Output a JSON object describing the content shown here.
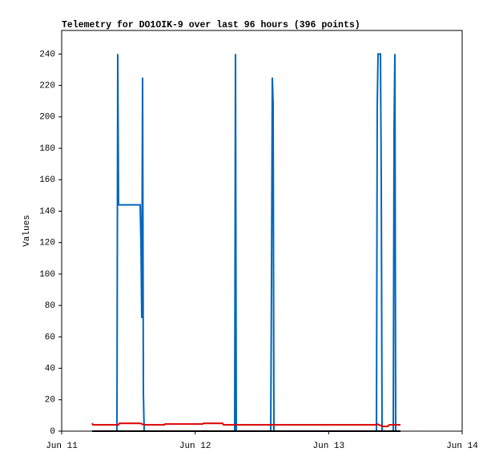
{
  "chart_data": {
    "type": "line",
    "title": "Telemetry for DO1OIK-9 over last 96 hours (396 points)",
    "y_label": "Values",
    "xlim": [
      11,
      14
    ],
    "xticks": [
      {
        "value": 11,
        "label": "Jun 11"
      },
      {
        "value": 12,
        "label": "Jun 12"
      },
      {
        "value": 13,
        "label": "Jun 13"
      },
      {
        "value": 14,
        "label": "Jun 14"
      }
    ],
    "ylim": [
      0,
      255
    ],
    "yticks": [
      0,
      20,
      40,
      60,
      80,
      100,
      120,
      140,
      160,
      180,
      200,
      220,
      240
    ],
    "series": [
      {
        "color": "#0066bb",
        "x": [
          11.228,
          11.414,
          11.42,
          11.426,
          11.588,
          11.594,
          11.6,
          11.606,
          11.612,
          11.618,
          12.296,
          12.302,
          12.308,
          12.566,
          12.572,
          12.578,
          12.584,
          12.59,
          13.358,
          13.364,
          13.37,
          13.376,
          13.388,
          13.394,
          13.4,
          13.484,
          13.49,
          13.496,
          13.502,
          13.538
        ],
        "values": [
          0,
          0,
          240,
          144,
          144,
          120,
          72,
          225,
          24,
          0,
          0,
          240,
          0,
          0,
          97,
          225,
          208,
          0,
          0,
          208,
          240,
          240,
          240,
          160,
          0,
          0,
          192,
          240,
          0,
          0
        ]
      },
      {
        "color": "#dd0000",
        "x": [
          11.228,
          11.234,
          11.426,
          11.432,
          11.588,
          11.618,
          11.768,
          11.774,
          12.056,
          12.062,
          12.206,
          12.212,
          13.358,
          13.364,
          13.406,
          13.442,
          13.454,
          13.538
        ],
        "values": [
          5,
          4,
          4,
          5,
          5,
          4,
          4,
          4.5,
          4.5,
          5,
          5,
          4,
          4,
          4.5,
          3,
          3,
          4,
          4
        ]
      },
      {
        "color": "#000000",
        "x": [
          11.228,
          13.538
        ],
        "values": [
          0,
          0
        ]
      }
    ]
  }
}
